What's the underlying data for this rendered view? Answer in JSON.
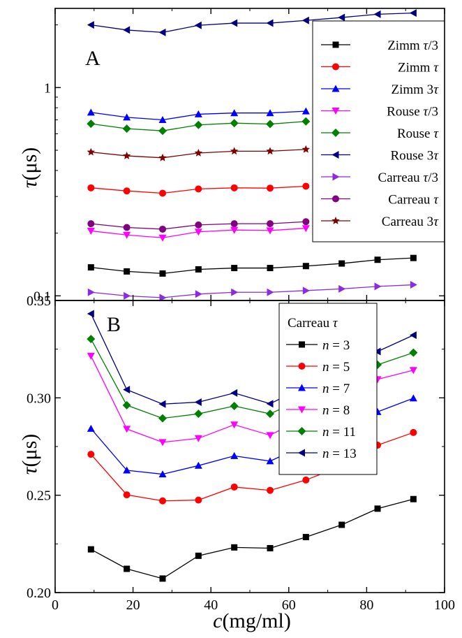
{
  "chart_data": [
    {
      "panel": "A",
      "type": "line",
      "yscale": "log",
      "ylabel": "τ(μs)",
      "xlabel": "",
      "xlim": [
        0,
        100
      ],
      "ylim": [
        0.095,
        2.4
      ],
      "yticks": [
        {
          "value": 0.1,
          "label": "0.1"
        },
        {
          "value": 1,
          "label": "1"
        }
      ],
      "legend_position": "top-right",
      "series": [
        {
          "name": "Zimm τ/3",
          "color": "#000000",
          "marker": "square",
          "x": [
            9.2,
            18.4,
            27.6,
            36.8,
            46,
            55.2,
            64.4,
            73.6,
            82.8,
            92
          ],
          "y": [
            0.137,
            0.131,
            0.128,
            0.134,
            0.136,
            0.136,
            0.139,
            0.143,
            0.149,
            0.152
          ]
        },
        {
          "name": "Zimm τ",
          "color": "#ff0000",
          "marker": "circle",
          "x": [
            9.2,
            18.4,
            27.6,
            36.8,
            46,
            55.2,
            64.4
          ],
          "y": [
            0.33,
            0.319,
            0.311,
            0.326,
            0.33,
            0.329,
            0.336
          ]
        },
        {
          "name": "Zimm 3τ",
          "color": "#0000ff",
          "marker": "triangle-up",
          "x": [
            9.2,
            18.4,
            27.6,
            36.8,
            46,
            55.2,
            64.4
          ],
          "y": [
            0.76,
            0.72,
            0.7,
            0.745,
            0.755,
            0.755,
            0.77
          ]
        },
        {
          "name": "Rouse τ/3",
          "color": "#ff00ff",
          "marker": "triangle-down",
          "x": [
            9.2,
            18.4,
            27.6,
            36.8,
            46,
            55.2,
            64.4
          ],
          "y": [
            0.205,
            0.196,
            0.19,
            0.203,
            0.207,
            0.206,
            0.211
          ]
        },
        {
          "name": "Rouse τ",
          "color": "#008000",
          "marker": "diamond",
          "x": [
            9.2,
            18.4,
            27.6,
            36.8,
            46,
            55.2,
            64.4
          ],
          "y": [
            0.67,
            0.635,
            0.62,
            0.662,
            0.675,
            0.668,
            0.688
          ]
        },
        {
          "name": "Rouse 3τ",
          "color": "#000080",
          "marker": "triangle-left",
          "x": [
            9.2,
            18.4,
            27.6,
            36.8,
            46,
            55.2,
            64.4,
            73.6,
            82.8,
            92
          ],
          "y": [
            2.0,
            1.89,
            1.84,
            1.99,
            2.04,
            2.04,
            2.1,
            2.17,
            2.25,
            2.28
          ]
        },
        {
          "name": "Carreau τ/3",
          "color": "#8a2be2",
          "marker": "triangle-right",
          "x": [
            9.2,
            18.4,
            27.6,
            36.8,
            46,
            55.2,
            64.4,
            73.6,
            82.8,
            92
          ],
          "y": [
            0.104,
            0.1,
            0.098,
            0.102,
            0.104,
            0.104,
            0.106,
            0.108,
            0.111,
            0.113
          ]
        },
        {
          "name": "Carreau τ",
          "color": "#800080",
          "marker": "circle",
          "x": [
            9.2,
            18.4,
            27.6,
            36.8,
            46,
            55.2,
            64.4
          ],
          "y": [
            0.222,
            0.213,
            0.209,
            0.219,
            0.222,
            0.222,
            0.227
          ]
        },
        {
          "name": "Carreau 3τ",
          "color": "#800000",
          "marker": "star",
          "x": [
            9.2,
            18.4,
            27.6,
            36.8,
            46,
            55.2,
            64.4
          ],
          "y": [
            0.49,
            0.47,
            0.46,
            0.485,
            0.495,
            0.495,
            0.505
          ]
        }
      ]
    },
    {
      "panel": "B",
      "type": "line",
      "yscale": "linear",
      "xlabel": "c(mg/ml)",
      "ylabel": "τ(μs)",
      "xlim": [
        0,
        100
      ],
      "ylim": [
        0.2,
        0.35
      ],
      "xticks": [
        0,
        20,
        40,
        60,
        80,
        100
      ],
      "yticks": [
        {
          "value": 0.2,
          "label": "0.20"
        },
        {
          "value": 0.25,
          "label": "0.25"
        },
        {
          "value": 0.3,
          "label": "0.30"
        },
        {
          "value": 0.35,
          "label": "0.35"
        }
      ],
      "legend_title": "Carreau τ",
      "legend_position": "top-right",
      "series": [
        {
          "name": "n = 3",
          "color": "#000000",
          "marker": "square",
          "x": [
            9.2,
            18.4,
            27.6,
            36.8,
            46,
            55.2,
            64.4,
            73.6,
            82.8,
            92
          ],
          "y": [
            0.2222,
            0.2122,
            0.2072,
            0.2189,
            0.2232,
            0.2228,
            0.2285,
            0.2348,
            0.2431,
            0.248
          ]
        },
        {
          "name": "n = 5",
          "color": "#ff0000",
          "marker": "circle",
          "x": [
            9.2,
            18.4,
            27.6,
            36.8,
            46,
            55.2,
            64.4,
            73.6,
            82.8,
            92
          ],
          "y": [
            0.271,
            0.2502,
            0.2471,
            0.2475,
            0.2542,
            0.2525,
            0.2578,
            0.265,
            0.2757,
            0.2822
          ]
        },
        {
          "name": "n = 7",
          "color": "#0000ff",
          "marker": "triangle-up",
          "x": [
            9.2,
            18.4,
            27.6,
            36.8,
            46,
            55.2,
            82.8,
            92
          ],
          "y": [
            0.2842,
            0.2628,
            0.2608,
            0.2652,
            0.2702,
            0.2675,
            0.2928,
            0.2998
          ]
        },
        {
          "name": "n = 8",
          "color": "#ff00ff",
          "marker": "triangle-down",
          "x": [
            9.2,
            18.4,
            27.6,
            36.8,
            46,
            55.2,
            82.8,
            92
          ],
          "y": [
            0.3215,
            0.284,
            0.2772,
            0.2792,
            0.2862,
            0.2808,
            0.3095,
            0.3142
          ]
        },
        {
          "name": "n = 11",
          "color": "#008000",
          "marker": "diamond",
          "x": [
            9.2,
            18.4,
            27.6,
            36.8,
            46,
            55.2,
            82.8,
            92
          ],
          "y": [
            0.3302,
            0.2962,
            0.2895,
            0.2918,
            0.2958,
            0.2918,
            0.317,
            0.3232
          ]
        },
        {
          "name": "n = 13",
          "color": "#000080",
          "marker": "triangle-left",
          "x": [
            9.2,
            18.4,
            27.6,
            36.8,
            46,
            55.2,
            82.8,
            92
          ],
          "y": [
            0.3432,
            0.3042,
            0.2968,
            0.2978,
            0.3025,
            0.297,
            0.3238,
            0.3322
          ]
        }
      ]
    }
  ],
  "panel_labels": {
    "A": "A",
    "B": "B"
  },
  "axis_labels": {
    "y_symbol": "τ",
    "y_unit": "(μs)",
    "x_symbol": "c",
    "x_unit": "(mg/ml)"
  }
}
